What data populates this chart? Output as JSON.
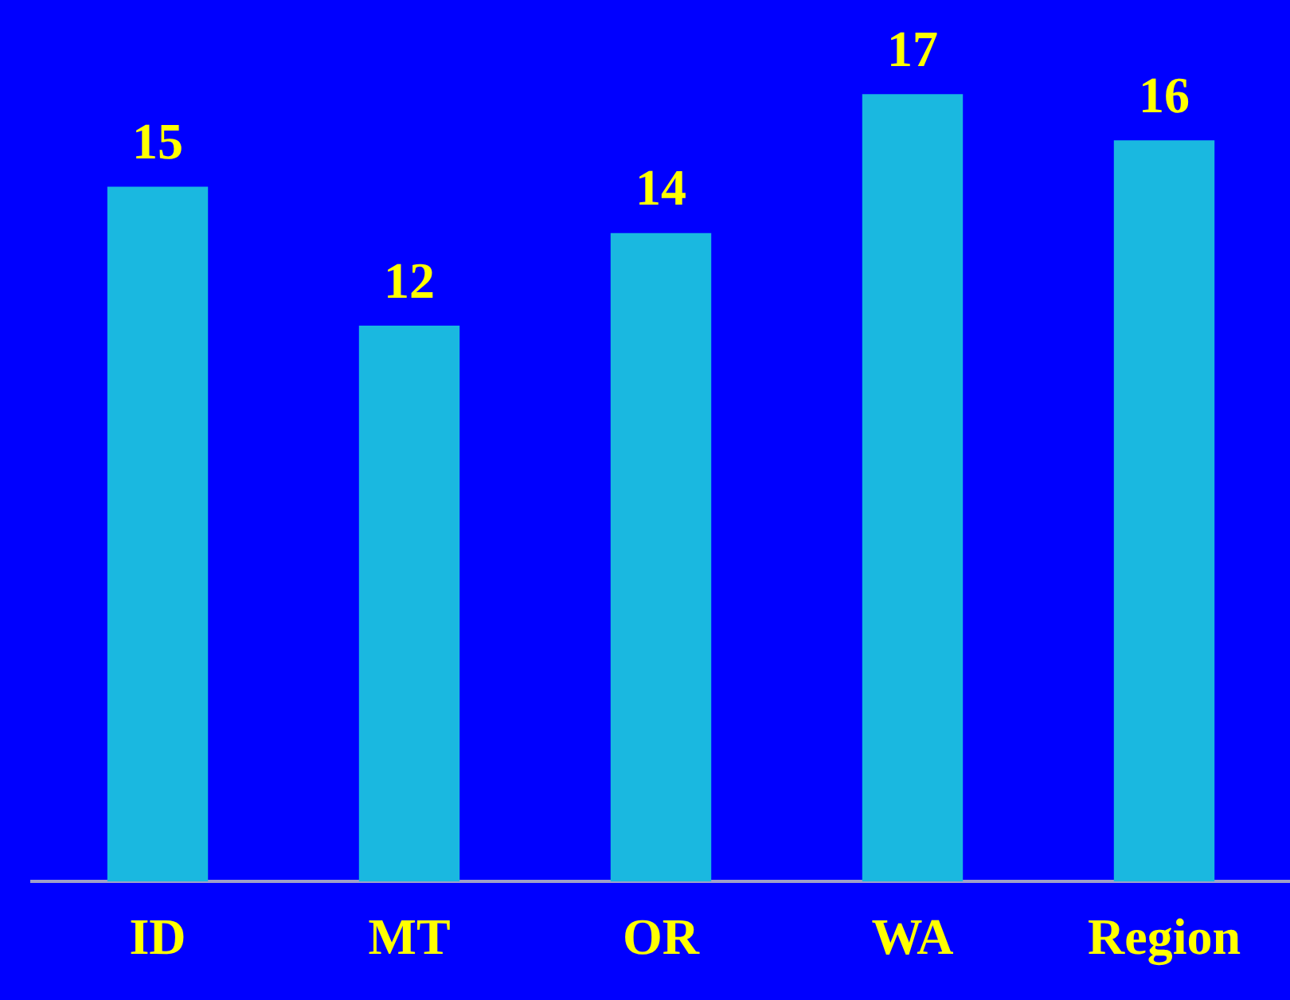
{
  "chart_data": {
    "type": "bar",
    "categories": [
      "ID",
      "MT",
      "OR",
      "WA",
      "Region"
    ],
    "values": [
      15,
      12,
      14,
      17,
      16
    ],
    "color": "#1ab8e0",
    "data_labels": true,
    "grid": false,
    "legend": false
  }
}
